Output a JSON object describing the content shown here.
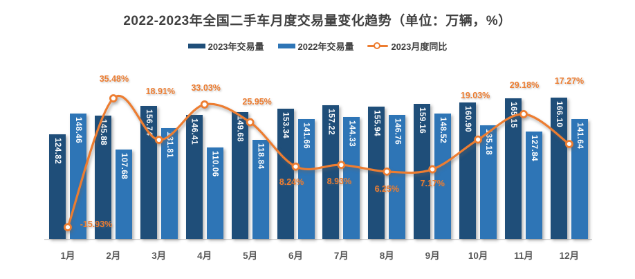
{
  "page": {
    "background": "#FFFFFF"
  },
  "chart": {
    "title": "2022-2023年全国二手车月度交易量变化趋势（单位：万辆，%）",
    "legend": [
      {
        "label": "2023年交易量",
        "type": "bar",
        "color": "#1F4E79"
      },
      {
        "label": "2022年交易量",
        "type": "bar",
        "color": "#2E75B6"
      },
      {
        "label": "2023月度同比",
        "type": "line",
        "color": "#ED7D31"
      }
    ],
    "colors": {
      "bar_2023": "#1F4E79",
      "bar_2022": "#2E75B6",
      "yoy_line": "#ED7D31",
      "axis_line": "#D9D9D9",
      "axis_label": "#595959",
      "title_text": "#404040",
      "bar_value_label": "#FFFFFF"
    }
  },
  "chart_data": {
    "type": "bar+line combo",
    "title": "2022-2023年全国二手车月度交易量变化趋势",
    "unit_note": "单位：万辆，%",
    "legend_position": "top",
    "grid": false,
    "categories": [
      "1月",
      "2月",
      "3月",
      "4月",
      "5月",
      "6月",
      "7月",
      "8月",
      "9月",
      "10月",
      "11月",
      "12月"
    ],
    "series": [
      {
        "name": "2023年交易量",
        "type": "bar",
        "color": "#1F4E79",
        "values": [
          124.82,
          145.88,
          156.74,
          146.41,
          149.68,
          153.34,
          157.22,
          155.94,
          159.16,
          160.9,
          165.15,
          166.1
        ]
      },
      {
        "name": "2022年交易量",
        "type": "bar",
        "color": "#2E75B6",
        "values": [
          148.46,
          107.68,
          131.81,
          110.06,
          118.84,
          141.66,
          144.33,
          146.76,
          148.52,
          135.18,
          127.84,
          141.64
        ]
      },
      {
        "name": "2023月度同比",
        "type": "line",
        "axis": "secondary",
        "color": "#ED7D31",
        "values": [
          -15.93,
          35.48,
          18.91,
          33.03,
          25.95,
          8.24,
          8.93,
          6.25,
          7.17,
          19.03,
          29.18,
          17.27
        ],
        "labels": [
          "-15.93%",
          "35.48%",
          "18.91%",
          "33.03%",
          "25.95%",
          "8.24%",
          "8.93%",
          "6.25%",
          "7.17%",
          "19.03%",
          "29.18%",
          "17.27%"
        ]
      }
    ]
  }
}
